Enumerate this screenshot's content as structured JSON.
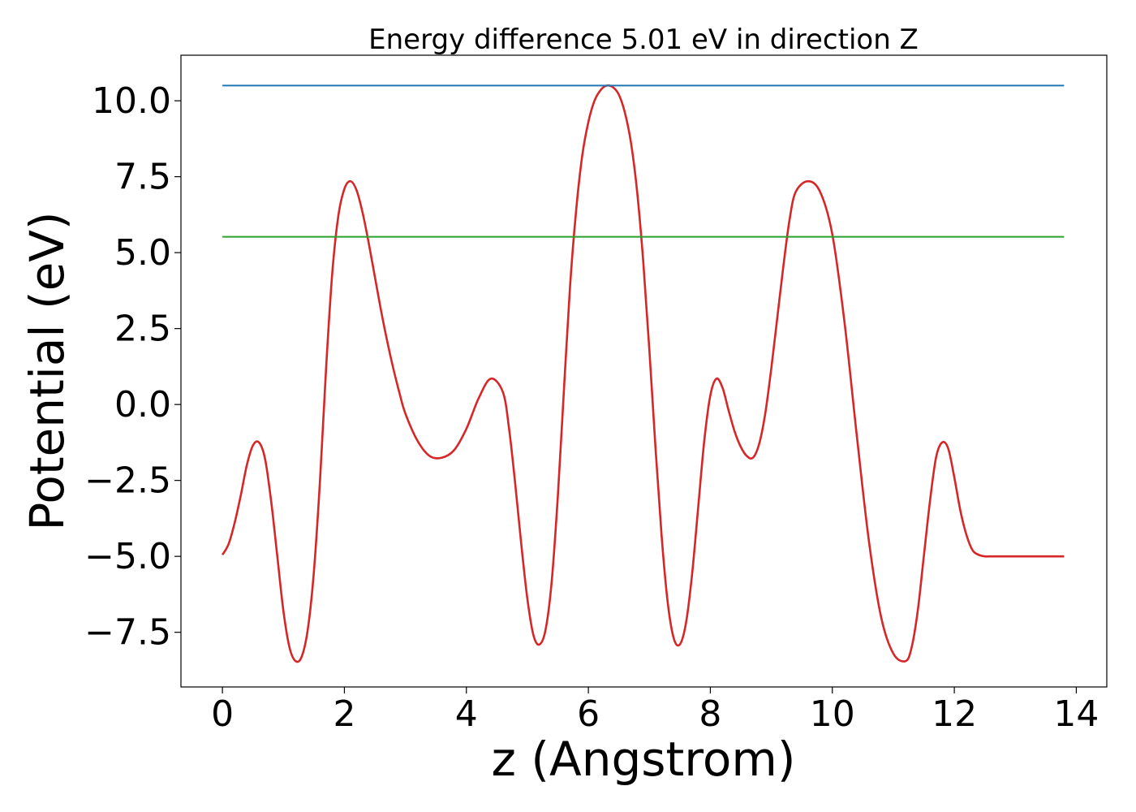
{
  "chart_data": {
    "type": "line",
    "title": "Energy difference 5.01 eV in direction Z",
    "xlabel": "z (Angstrom)",
    "ylabel": "Potential (eV)",
    "xlim": [
      -0.68,
      14.5
    ],
    "ylim": [
      -9.3,
      11.5
    ],
    "xticks": [
      0,
      2,
      4,
      6,
      8,
      10,
      12,
      14
    ],
    "xtick_labels": [
      "0",
      "2",
      "4",
      "6",
      "8",
      "10",
      "12",
      "14"
    ],
    "yticks": [
      -7.5,
      -5.0,
      -2.5,
      0.0,
      2.5,
      5.0,
      7.5,
      10.0
    ],
    "ytick_labels": [
      "−7.5",
      "−5.0",
      "−2.5",
      "0.0",
      "2.5",
      "5.0",
      "7.5",
      "10.0"
    ],
    "grid": false,
    "series": [
      {
        "color": "#d62728",
        "style": "curve",
        "x": [
          0.0,
          0.1,
          0.2,
          0.3,
          0.4,
          0.5,
          0.6,
          0.7,
          0.8,
          0.9,
          1.0,
          1.1,
          1.2,
          1.3,
          1.4,
          1.5,
          1.6,
          1.7,
          1.8,
          1.9,
          2.0,
          2.1,
          2.2,
          2.3,
          2.4,
          2.5,
          2.6,
          2.7,
          2.8,
          2.9,
          3.0,
          3.2,
          3.4,
          3.6,
          3.8,
          4.0,
          4.2,
          4.4,
          4.6,
          4.7,
          4.8,
          4.9,
          5.0,
          5.1,
          5.2,
          5.3,
          5.4,
          5.5,
          5.6,
          5.7,
          5.8,
          5.9,
          6.0,
          6.1,
          6.2,
          6.3,
          6.4,
          6.5,
          6.6,
          6.7,
          6.8,
          6.9,
          7.0,
          7.1,
          7.2,
          7.3,
          7.4,
          7.5,
          7.6,
          7.7,
          7.8,
          7.9,
          8.0,
          8.1,
          8.2,
          8.3,
          8.4,
          8.5,
          8.6,
          8.7,
          8.8,
          8.9,
          9.0,
          9.1,
          9.2,
          9.3,
          9.4,
          9.6,
          9.8,
          10.0,
          10.2,
          10.4,
          10.6,
          10.8,
          11.0,
          11.2,
          11.3,
          11.4,
          11.5,
          11.6,
          11.7,
          11.8,
          11.9,
          12.0,
          12.1,
          12.2,
          12.3,
          12.4,
          12.5,
          12.6,
          12.7,
          12.8,
          12.9,
          13.0,
          13.1,
          13.2,
          13.3,
          13.4,
          13.5,
          13.6,
          13.7,
          13.8
        ],
        "y": [
          -4.95,
          -4.6,
          -3.9,
          -3.0,
          -2.0,
          -1.35,
          -1.25,
          -1.8,
          -3.2,
          -5.0,
          -6.8,
          -8.0,
          -8.45,
          -8.3,
          -7.4,
          -5.5,
          -2.5,
          1.2,
          4.3,
          6.2,
          7.1,
          7.35,
          7.05,
          6.3,
          5.3,
          4.2,
          3.1,
          2.1,
          1.2,
          0.4,
          -0.3,
          -1.2,
          -1.7,
          -1.75,
          -1.5,
          -0.8,
          0.2,
          0.85,
          0.4,
          -0.8,
          -2.6,
          -4.6,
          -6.4,
          -7.6,
          -7.9,
          -7.4,
          -5.8,
          -3.0,
          0.5,
          3.9,
          6.4,
          8.2,
          9.3,
          10.0,
          10.35,
          10.5,
          10.45,
          10.2,
          9.6,
          8.6,
          7.0,
          4.7,
          1.8,
          -1.4,
          -4.3,
          -6.5,
          -7.7,
          -7.9,
          -7.2,
          -5.6,
          -3.4,
          -1.2,
          0.3,
          0.85,
          0.55,
          -0.2,
          -0.9,
          -1.4,
          -1.7,
          -1.75,
          -1.3,
          -0.3,
          1.2,
          2.9,
          4.6,
          6.1,
          7.0,
          7.35,
          7.0,
          5.6,
          2.7,
          -1.0,
          -4.5,
          -7.0,
          -8.2,
          -8.45,
          -8.0,
          -6.8,
          -5.0,
          -3.2,
          -1.75,
          -1.25,
          -1.45,
          -2.4,
          -3.5,
          -4.3,
          -4.8,
          -4.95,
          -5.0,
          -5.0,
          -5.0,
          -5.0,
          -5.0,
          -5.0,
          -5.0,
          -5.0,
          -5.0,
          -5.0,
          -5.0,
          -5.0,
          -5.0,
          -5.0
        ]
      },
      {
        "color": "#1f77b4",
        "style": "line",
        "x": [
          0.0,
          13.8
        ],
        "y": [
          10.5,
          10.5
        ]
      },
      {
        "color": "#2ca02c",
        "style": "line",
        "x": [
          0.0,
          13.8
        ],
        "y": [
          5.52,
          5.52
        ]
      }
    ]
  }
}
